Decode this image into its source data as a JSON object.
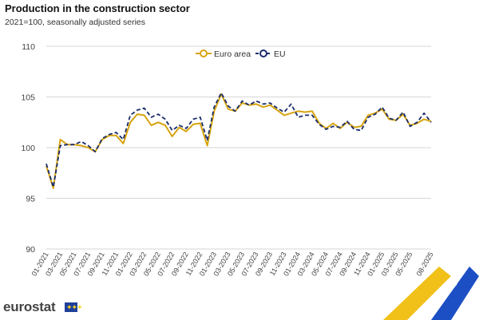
{
  "title": "Production in the construction sector",
  "subtitle": "2021=100, seasonally adjusted series",
  "logo_text": "eurostat",
  "colors": {
    "euro_area": "#d7a40f",
    "eu": "#1b2d6b",
    "grid": "#d6d6d6",
    "accent_yellow": "#f1c11a",
    "accent_blue": "#1d4fc4"
  },
  "chart_data": {
    "type": "line",
    "title": "Production in the construction sector",
    "subtitle": "2021=100, seasonally adjusted series",
    "xlabel": "",
    "ylabel": "",
    "ylim": [
      90,
      110
    ],
    "yticks": [
      90,
      95,
      100,
      105,
      110
    ],
    "grid": true,
    "legend_position": "top",
    "xtick_labels": [
      "01-2021",
      "03-2021",
      "05-2021",
      "07-2021",
      "09-2021",
      "11-2021",
      "01-2022",
      "03-2022",
      "05-2022",
      "07-2022",
      "09-2022",
      "11-2022",
      "01-2023",
      "03-2023",
      "05-2023",
      "07-2023",
      "09-2023",
      "11-2023",
      "01-2024",
      "03-2024",
      "05-2024",
      "07-2024",
      "09-2024",
      "11-2024",
      "01-2025",
      "03-2025",
      "05-2025",
      "08-2025"
    ],
    "categories": [
      "01-2021",
      "02-2021",
      "03-2021",
      "04-2021",
      "05-2021",
      "06-2021",
      "07-2021",
      "08-2021",
      "09-2021",
      "10-2021",
      "11-2021",
      "12-2021",
      "01-2022",
      "02-2022",
      "03-2022",
      "04-2022",
      "05-2022",
      "06-2022",
      "07-2022",
      "08-2022",
      "09-2022",
      "10-2022",
      "11-2022",
      "12-2022",
      "01-2023",
      "02-2023",
      "03-2023",
      "04-2023",
      "05-2023",
      "06-2023",
      "07-2023",
      "08-2023",
      "09-2023",
      "10-2023",
      "11-2023",
      "12-2023",
      "01-2024",
      "02-2024",
      "03-2024",
      "04-2024",
      "05-2024",
      "06-2024",
      "07-2024",
      "08-2024",
      "09-2024",
      "10-2024",
      "11-2024",
      "12-2024",
      "01-2025",
      "02-2025",
      "03-2025",
      "04-2025",
      "05-2025",
      "06-2025",
      "07-2025",
      "08-2025"
    ],
    "series": [
      {
        "name": "Euro area",
        "style": "solid",
        "values": [
          98.2,
          96.0,
          100.8,
          100.3,
          100.3,
          100.2,
          100.0,
          99.6,
          100.8,
          101.2,
          101.2,
          100.4,
          102.5,
          103.3,
          103.2,
          102.2,
          102.5,
          102.2,
          101.1,
          102.0,
          101.6,
          102.3,
          102.4,
          100.2,
          103.6,
          105.3,
          103.8,
          103.6,
          104.4,
          104.2,
          104.3,
          104.0,
          104.2,
          103.7,
          103.2,
          103.4,
          103.6,
          103.5,
          103.6,
          102.4,
          101.9,
          102.4,
          101.9,
          102.5,
          102.0,
          102.1,
          103.2,
          103.4,
          103.8,
          102.8,
          102.7,
          103.3,
          102.2,
          102.4,
          102.8,
          102.6
        ]
      },
      {
        "name": "EU",
        "style": "dashed",
        "values": [
          98.4,
          96.1,
          100.2,
          100.3,
          100.3,
          100.6,
          100.2,
          99.6,
          100.9,
          101.3,
          101.5,
          100.8,
          103.2,
          103.7,
          103.9,
          103.0,
          103.3,
          102.8,
          101.7,
          102.2,
          101.9,
          102.8,
          103.0,
          100.7,
          104.0,
          105.4,
          104.1,
          103.6,
          104.6,
          104.2,
          104.6,
          104.3,
          104.4,
          103.9,
          103.5,
          104.3,
          103.0,
          103.2,
          103.2,
          102.3,
          101.8,
          102.1,
          102.0,
          102.6,
          101.8,
          101.7,
          103.0,
          103.3,
          104.0,
          102.9,
          102.7,
          103.5,
          102.1,
          102.5,
          103.4,
          102.5
        ]
      }
    ]
  }
}
